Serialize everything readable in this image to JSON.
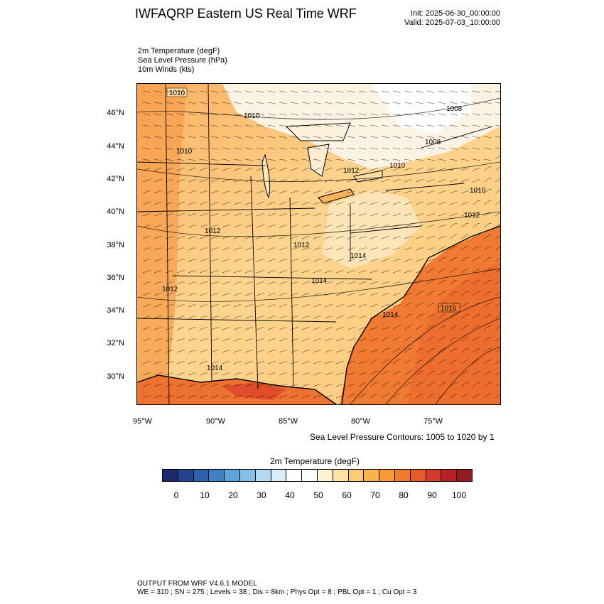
{
  "header": {
    "title": "IWFAQRP Eastern US Real Time WRF",
    "init": "Init: 2025-06-30_00:00:00",
    "valid": "Valid: 2025-07-03_10:00:00"
  },
  "fields": {
    "temperature": "2m Temperature   (degF)",
    "pressure": "Sea Level Pressure   (hPa)",
    "winds": "10m Winds   (kts)"
  },
  "map": {
    "lat_labels": [
      "46°N",
      "44°N",
      "42°N",
      "40°N",
      "38°N",
      "36°N",
      "34°N",
      "32°N",
      "30°N"
    ],
    "lon_labels": [
      "95°W",
      "90°W",
      "85°W",
      "80°W",
      "75°W"
    ],
    "contour_labels": [
      "1010",
      "1012",
      "1010",
      "1010",
      "1008",
      "1008",
      "1010",
      "1010",
      "1012",
      "1012",
      "1012",
      "1014",
      "1014",
      "1012",
      "1014",
      "1016",
      "1014"
    ],
    "contour_note": "Sea Level Pressure Contours: 1005 to 1020 by 1"
  },
  "colorbar": {
    "title": "2m Temperature  (degF)",
    "ticks": [
      "0",
      "10",
      "20",
      "30",
      "40",
      "50",
      "60",
      "70",
      "80",
      "90",
      "100"
    ],
    "colors": [
      "#1a2b6b",
      "#24438f",
      "#2c62b0",
      "#3d82c7",
      "#5ea3d9",
      "#86c0e8",
      "#b1daf2",
      "#d8eef8",
      "#ffffff",
      "#ffffff",
      "#fff3d2",
      "#fee3a4",
      "#fecc76",
      "#fdb24a",
      "#f99836",
      "#f27c2e",
      "#e65a2a",
      "#d63a28",
      "#bb2025",
      "#961a20"
    ]
  },
  "footer": {
    "line1": "OUTPUT FROM WRF V4.6.1 MODEL",
    "line2": "WE = 310 ; SN = 275 ; Levels = 38 ; Dis = 8km ; Phys Opt = 8 ; PBL Opt = 1 ; Cu Opt = 3"
  }
}
